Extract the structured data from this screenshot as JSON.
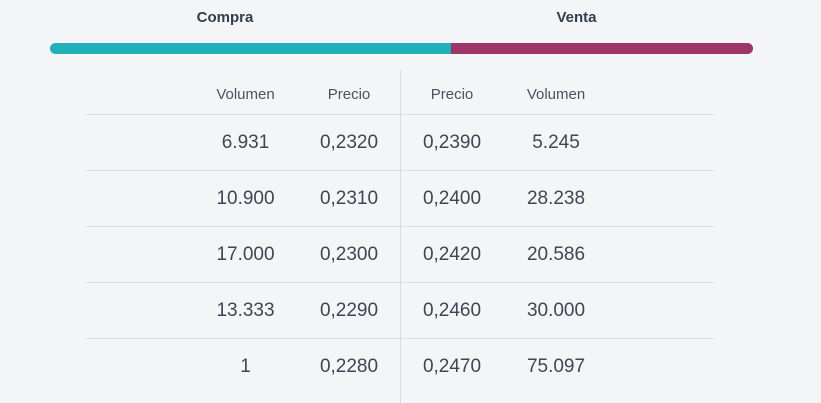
{
  "panel": {
    "buy_label": "Compra",
    "sell_label": "Venta",
    "colors": {
      "buy": "#1FB0BA",
      "sell": "#9D3568",
      "background": "#F4F5F7",
      "text": "#3D4854",
      "divider": "#DCE0E5"
    },
    "depth_bar": {
      "buy_percent": 57,
      "sell_percent": 43
    }
  },
  "table": {
    "headers": {
      "buy_volume": "Volumen",
      "buy_price": "Precio",
      "sell_price": "Precio",
      "sell_volume": "Volumen"
    },
    "rows": [
      {
        "buy_volume": "6.931",
        "buy_price": "0,2320",
        "sell_price": "0,2390",
        "sell_volume": "5.245"
      },
      {
        "buy_volume": "10.900",
        "buy_price": "0,2310",
        "sell_price": "0,2400",
        "sell_volume": "28.238"
      },
      {
        "buy_volume": "17.000",
        "buy_price": "0,2300",
        "sell_price": "0,2420",
        "sell_volume": "20.586"
      },
      {
        "buy_volume": "13.333",
        "buy_price": "0,2290",
        "sell_price": "0,2460",
        "sell_volume": "30.000"
      },
      {
        "buy_volume": "1",
        "buy_price": "0,2280",
        "sell_price": "0,2470",
        "sell_volume": "75.097"
      }
    ]
  }
}
